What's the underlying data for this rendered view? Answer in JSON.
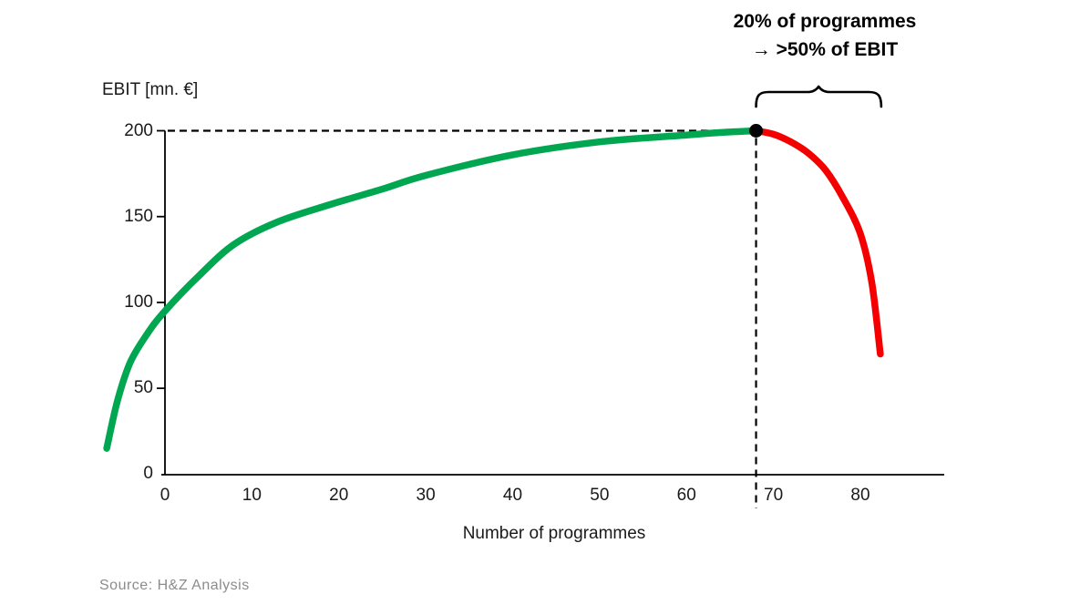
{
  "annotation": {
    "line1": "20% of programmes",
    "line2": "→ >50% of EBIT"
  },
  "y_axis_title": "EBIT [mn. €]",
  "x_axis_title": "Number of programmes",
  "source": "Source: H&Z Analysis",
  "colors": {
    "green": "#00A650",
    "red": "#F50000",
    "axis": "#000000",
    "guide": "#000000",
    "dot": "#000000",
    "brace": "#000000",
    "source_gray": "#8C8C8C"
  },
  "chart_data": {
    "type": "line",
    "title": "",
    "xlabel": "Number of programmes",
    "ylabel": "EBIT [mn. €]",
    "xlim": [
      -7,
      89
    ],
    "ylim": [
      0,
      200
    ],
    "grid": false,
    "legend": "none",
    "x_ticks": [
      0,
      10,
      20,
      30,
      40,
      50,
      60,
      70,
      80
    ],
    "y_ticks": [
      0,
      50,
      100,
      150,
      200
    ],
    "series": [
      {
        "name": "EBIT rising segment",
        "color": "#00A650",
        "points": [
          [
            -6.7,
            15
          ],
          [
            -5.5,
            42
          ],
          [
            -4,
            65
          ],
          [
            -2,
            82
          ],
          [
            0,
            95
          ],
          [
            4,
            116
          ],
          [
            8,
            134
          ],
          [
            13,
            147
          ],
          [
            19,
            157
          ],
          [
            25,
            166
          ],
          [
            30,
            174
          ],
          [
            40,
            186
          ],
          [
            50,
            193.5
          ],
          [
            60,
            197.5
          ],
          [
            64,
            199
          ],
          [
            68,
            200
          ]
        ]
      },
      {
        "name": "EBIT declining segment",
        "color": "#F50000",
        "points": [
          [
            68,
            200
          ],
          [
            70,
            198
          ],
          [
            72,
            193.5
          ],
          [
            74,
            187
          ],
          [
            76,
            177
          ],
          [
            78,
            161
          ],
          [
            80,
            140
          ],
          [
            81.3,
            112
          ],
          [
            82.3,
            70
          ]
        ]
      }
    ],
    "peak_point": {
      "x": 68,
      "y": 200
    },
    "guides": {
      "horizontal_dashed_y": 200,
      "vertical_dashed_x": 68
    },
    "brace_x_range": [
      68,
      82.4
    ]
  }
}
